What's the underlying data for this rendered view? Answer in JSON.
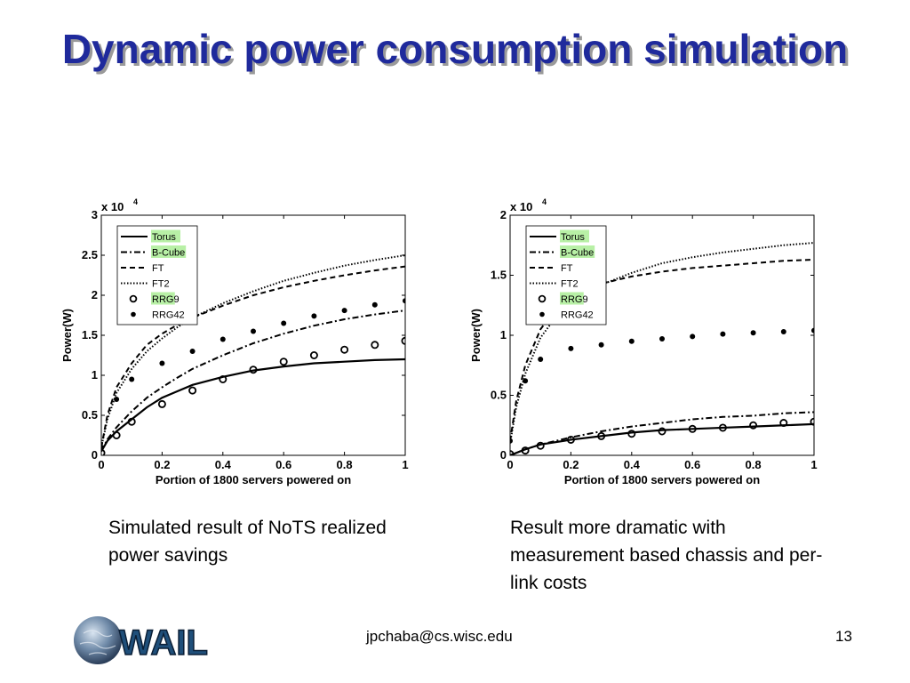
{
  "slide": {
    "title": "Dynamic power consumption simulation",
    "caption_left": "Simulated result of NoTS realized power savings",
    "caption_right": "Result more dramatic with measurement based chassis and per-link costs",
    "footer_email": "jpchaba@cs.wisc.edu",
    "page_number": "13",
    "logo_text": "WAIL"
  },
  "chart_data": [
    {
      "type": "line",
      "title": "",
      "xlabel": "Portion of 1800 servers powered on",
      "ylabel": "Power(W)",
      "y_exponent_label": "x 10",
      "y_exponent": "4",
      "xlim": [
        0,
        1
      ],
      "ylim": [
        0,
        3
      ],
      "xticks": [
        0,
        0.2,
        0.4,
        0.6,
        0.8,
        1
      ],
      "xtick_labels": [
        "0",
        "0.2",
        "0.4",
        "0.6",
        "0.8",
        "1"
      ],
      "yticks": [
        0,
        0.5,
        1,
        1.5,
        2,
        2.5,
        3
      ],
      "ytick_labels": [
        "0",
        "0.5",
        "1",
        "1.5",
        "2",
        "2.5",
        "3"
      ],
      "legend_position": "top-left",
      "series": [
        {
          "name": "Torus",
          "style": "solid",
          "highlight": true,
          "x": [
            0,
            0.02,
            0.05,
            0.1,
            0.15,
            0.2,
            0.25,
            0.3,
            0.4,
            0.5,
            0.6,
            0.7,
            0.8,
            0.9,
            1.0
          ],
          "y": [
            0.05,
            0.18,
            0.3,
            0.45,
            0.6,
            0.72,
            0.8,
            0.88,
            0.98,
            1.06,
            1.11,
            1.15,
            1.17,
            1.19,
            1.2
          ]
        },
        {
          "name": "B-Cube",
          "style": "dashdot",
          "highlight": true,
          "x": [
            0,
            0.02,
            0.05,
            0.1,
            0.15,
            0.2,
            0.25,
            0.3,
            0.4,
            0.5,
            0.6,
            0.7,
            0.8,
            0.9,
            1.0
          ],
          "y": [
            0.05,
            0.2,
            0.35,
            0.55,
            0.72,
            0.85,
            0.97,
            1.08,
            1.25,
            1.4,
            1.52,
            1.62,
            1.7,
            1.76,
            1.81
          ]
        },
        {
          "name": "FT",
          "style": "dashed",
          "highlight": false,
          "x": [
            0,
            0.02,
            0.05,
            0.1,
            0.15,
            0.2,
            0.25,
            0.3,
            0.4,
            0.5,
            0.6,
            0.7,
            0.8,
            0.9,
            1.0
          ],
          "y": [
            0.1,
            0.5,
            0.85,
            1.15,
            1.38,
            1.52,
            1.63,
            1.72,
            1.87,
            2.0,
            2.1,
            2.18,
            2.25,
            2.31,
            2.36
          ]
        },
        {
          "name": "FT2",
          "style": "dotted",
          "highlight": false,
          "x": [
            0,
            0.02,
            0.05,
            0.1,
            0.15,
            0.2,
            0.25,
            0.3,
            0.4,
            0.5,
            0.6,
            0.7,
            0.8,
            0.9,
            1.0
          ],
          "y": [
            0.1,
            0.45,
            0.78,
            1.08,
            1.3,
            1.46,
            1.6,
            1.72,
            1.9,
            2.05,
            2.18,
            2.28,
            2.37,
            2.44,
            2.5
          ]
        },
        {
          "name": "RRG9",
          "style": "open-circle",
          "highlight": true,
          "x": [
            0,
            0.05,
            0.1,
            0.2,
            0.3,
            0.4,
            0.5,
            0.6,
            0.7,
            0.8,
            0.9,
            1.0
          ],
          "y": [
            0.03,
            0.25,
            0.42,
            0.64,
            0.81,
            0.95,
            1.07,
            1.17,
            1.25,
            1.32,
            1.38,
            1.43
          ]
        },
        {
          "name": "RRG42",
          "style": "filled-dot",
          "highlight": false,
          "x": [
            0,
            0.05,
            0.1,
            0.2,
            0.3,
            0.4,
            0.5,
            0.6,
            0.7,
            0.8,
            0.9,
            1.0
          ],
          "y": [
            0.1,
            0.7,
            0.95,
            1.15,
            1.3,
            1.45,
            1.55,
            1.65,
            1.74,
            1.81,
            1.88,
            1.93
          ]
        }
      ]
    },
    {
      "type": "line",
      "title": "",
      "xlabel": "Portion of 1800 servers powered on",
      "ylabel": "Power(W)",
      "y_exponent_label": "x 10",
      "y_exponent": "4",
      "xlim": [
        0,
        1
      ],
      "ylim": [
        0,
        2
      ],
      "xticks": [
        0,
        0.2,
        0.4,
        0.6,
        0.8,
        1
      ],
      "xtick_labels": [
        "0",
        "0.2",
        "0.4",
        "0.6",
        "0.8",
        "1"
      ],
      "yticks": [
        0,
        0.5,
        1,
        1.5,
        2
      ],
      "ytick_labels": [
        "0",
        "0.5",
        "1",
        "1.5",
        "2"
      ],
      "legend_position": "top-left",
      "series": [
        {
          "name": "Torus",
          "style": "solid",
          "highlight": true,
          "x": [
            0,
            0.02,
            0.05,
            0.1,
            0.2,
            0.3,
            0.4,
            0.5,
            0.6,
            0.7,
            0.8,
            0.9,
            1.0
          ],
          "y": [
            0.0,
            0.02,
            0.05,
            0.09,
            0.13,
            0.16,
            0.19,
            0.21,
            0.22,
            0.23,
            0.24,
            0.25,
            0.26
          ]
        },
        {
          "name": "B-Cube",
          "style": "dashdot",
          "highlight": true,
          "x": [
            0,
            0.02,
            0.05,
            0.1,
            0.2,
            0.3,
            0.4,
            0.5,
            0.6,
            0.7,
            0.8,
            0.9,
            1.0
          ],
          "y": [
            0.0,
            0.02,
            0.05,
            0.09,
            0.15,
            0.2,
            0.24,
            0.27,
            0.3,
            0.32,
            0.33,
            0.35,
            0.36
          ]
        },
        {
          "name": "FT",
          "style": "dashed",
          "highlight": false,
          "x": [
            0,
            0.02,
            0.05,
            0.1,
            0.15,
            0.2,
            0.25,
            0.3,
            0.4,
            0.5,
            0.6,
            0.7,
            0.8,
            0.9,
            1.0
          ],
          "y": [
            0.12,
            0.45,
            0.75,
            1.05,
            1.22,
            1.32,
            1.39,
            1.43,
            1.49,
            1.53,
            1.56,
            1.58,
            1.6,
            1.62,
            1.63
          ]
        },
        {
          "name": "FT2",
          "style": "dotted",
          "highlight": false,
          "x": [
            0,
            0.02,
            0.05,
            0.1,
            0.15,
            0.2,
            0.25,
            0.3,
            0.4,
            0.5,
            0.6,
            0.7,
            0.8,
            0.9,
            1.0
          ],
          "y": [
            0.1,
            0.4,
            0.68,
            0.98,
            1.15,
            1.27,
            1.35,
            1.42,
            1.52,
            1.6,
            1.65,
            1.69,
            1.72,
            1.75,
            1.77
          ]
        },
        {
          "name": "RRG9",
          "style": "open-circle",
          "highlight": true,
          "x": [
            0,
            0.05,
            0.1,
            0.2,
            0.3,
            0.4,
            0.5,
            0.6,
            0.7,
            0.8,
            0.9,
            1.0
          ],
          "y": [
            0.01,
            0.04,
            0.08,
            0.13,
            0.16,
            0.18,
            0.2,
            0.22,
            0.23,
            0.25,
            0.27,
            0.28
          ]
        },
        {
          "name": "RRG42",
          "style": "filled-dot",
          "highlight": false,
          "x": [
            0,
            0.05,
            0.1,
            0.2,
            0.3,
            0.4,
            0.5,
            0.6,
            0.7,
            0.8,
            0.9,
            1.0
          ],
          "y": [
            0.12,
            0.62,
            0.8,
            0.89,
            0.92,
            0.95,
            0.97,
            0.99,
            1.01,
            1.02,
            1.03,
            1.04
          ]
        }
      ]
    }
  ]
}
